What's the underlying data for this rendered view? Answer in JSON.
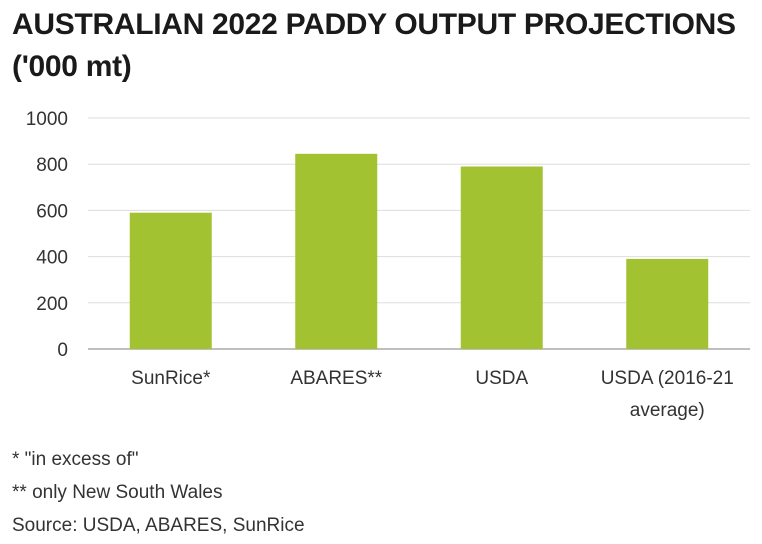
{
  "chart_data": {
    "type": "bar",
    "title": "AUSTRALIAN 2022 PADDY OUTPUT PROJECTIONS",
    "subtitle": "('000 mt)",
    "categories": [
      [
        "SunRice*"
      ],
      [
        "ABARES**"
      ],
      [
        "USDA"
      ],
      [
        "USDA (2016-21",
        "average)"
      ]
    ],
    "values": [
      590,
      845,
      790,
      390
    ],
    "ylim": [
      0,
      1000
    ],
    "yticks": [
      0,
      200,
      400,
      600,
      800,
      1000
    ],
    "grid": true,
    "bar_color": "#a2c232",
    "grid_color": "#dddddd",
    "axis_color": "#999999"
  },
  "notes": {
    "note1": "* \"in excess of\"",
    "note2": "** only New South Wales",
    "source": "Source: USDA, ABARES, SunRice"
  }
}
